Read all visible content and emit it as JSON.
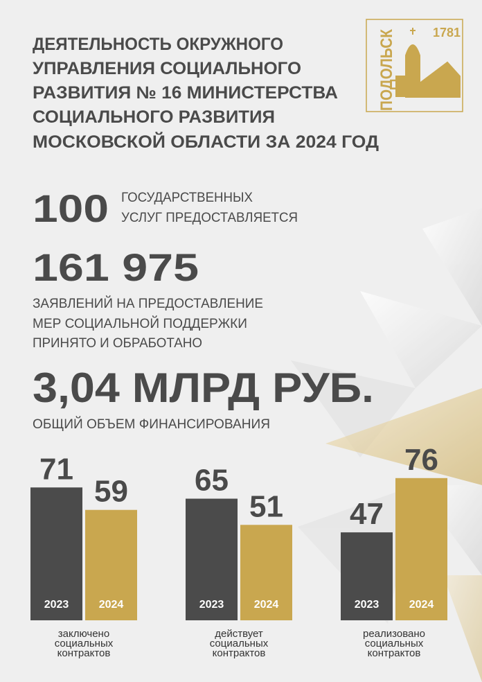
{
  "header": {
    "title": [
      "ДЕЯТЕЛЬНОСТЬ ОКРУЖНОГО",
      "УПРАВЛЕНИЯ СОЦИАЛЬНОГО",
      "РАЗВИТИЯ № 16 МИНИСТЕРСТВА",
      "СОЦИАЛЬНОГО РАЗВИТИЯ",
      "МОСКОВСКОЙ ОБЛАСТИ ЗА 2024 ГОД"
    ]
  },
  "logo": {
    "name": "ПОДОЛЬСК",
    "year": "1781"
  },
  "stats": [
    {
      "value": "100",
      "label": [
        "ГОСУДАРСТВЕННЫХ",
        "УСЛУГ ПРЕДОСТАВЛЯЕТСЯ"
      ]
    },
    {
      "value": "161 975",
      "label": [
        "ЗАЯВЛЕНИЙ НА ПРЕДОСТАВЛЕНИЕ",
        "МЕР СОЦИАЛЬНОЙ ПОДДЕРЖКИ",
        "ПРИНЯТО И ОБРАБОТАНО"
      ]
    },
    {
      "value": "3,04 МЛРД РУБ.",
      "label": [
        "ОБЩИЙ ОБЪЕМ ФИНАНСИРОВАНИЯ"
      ]
    }
  ],
  "chart_data": [
    {
      "type": "bar",
      "categories": [
        "2023",
        "2024"
      ],
      "values": [
        71,
        59
      ],
      "colors": [
        "#4b4b4b",
        "#c9a74f"
      ],
      "caption": [
        "заключено",
        "социальных",
        "контрактов"
      ]
    },
    {
      "type": "bar",
      "categories": [
        "2023",
        "2024"
      ],
      "values": [
        65,
        51
      ],
      "colors": [
        "#4b4b4b",
        "#c9a74f"
      ],
      "caption": [
        "действует",
        "социальных",
        "контрактов"
      ]
    },
    {
      "type": "bar",
      "categories": [
        "2023",
        "2024"
      ],
      "values": [
        47,
        76
      ],
      "colors": [
        "#4b4b4b",
        "#c9a74f"
      ],
      "caption": [
        "реализовано",
        "социальных",
        "контрактов"
      ]
    }
  ]
}
